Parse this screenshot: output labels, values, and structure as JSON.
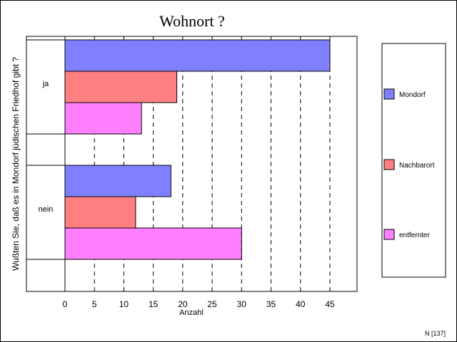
{
  "chart_data": {
    "type": "bar",
    "orientation": "horizontal",
    "title": "Wohnort ?",
    "ylabel": "Wußten Sie, daß es in Mondorf jüdischen Friedhof gibt ?",
    "xlabel": "Anzahl",
    "categories": [
      "ja",
      "nein"
    ],
    "series": [
      {
        "name": "Mondorf",
        "color": "#8080ff",
        "values": [
          45,
          18
        ]
      },
      {
        "name": "Nachbarort",
        "color": "#ff8080",
        "values": [
          19,
          12
        ]
      },
      {
        "name": "entfernter",
        "color": "#ff80ff",
        "values": [
          13,
          30
        ]
      }
    ],
    "xlim": [
      0,
      45
    ],
    "xticks": [
      0,
      5,
      10,
      15,
      20,
      25,
      30,
      35,
      40,
      45
    ],
    "grid": "vertical-dashed",
    "legend": "right"
  },
  "footer": {
    "note": "N [137]"
  }
}
